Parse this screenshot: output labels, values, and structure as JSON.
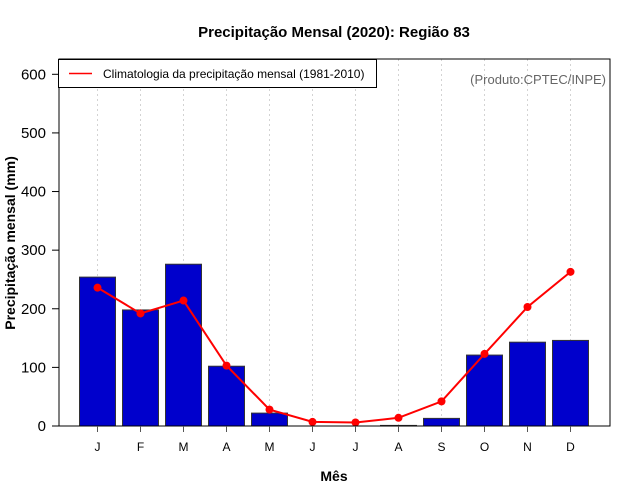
{
  "chart_data": {
    "type": "bar",
    "title": "Precipitação Mensal (2020): Região 83",
    "xlabel": "Mês",
    "ylabel": "Precipitação mensal (mm)",
    "categories": [
      "J",
      "F",
      "M",
      "A",
      "M",
      "J",
      "J",
      "A",
      "S",
      "O",
      "N",
      "D"
    ],
    "ylim": [
      0,
      600
    ],
    "yticks": [
      0,
      100,
      200,
      300,
      400,
      500,
      600
    ],
    "grid": "vertical dotted",
    "series": [
      {
        "name": "Precipitação mensal 2020",
        "kind": "bar",
        "color": "#0000cc",
        "values": [
          254,
          198,
          276,
          102,
          22,
          0,
          0,
          1,
          13,
          121,
          143,
          146
        ]
      },
      {
        "name": "Climatologia da precipitação mensal (1981-2010)",
        "kind": "line",
        "color": "#ff0000",
        "values": [
          236,
          192,
          214,
          103,
          28,
          7,
          6,
          14,
          42,
          123,
          203,
          263
        ]
      }
    ],
    "legend": {
      "position": "top-left",
      "entries": [
        "Climatologia da precipitação mensal (1981-2010)"
      ]
    },
    "annotation": "(Produto:CPTEC/INPE)"
  }
}
